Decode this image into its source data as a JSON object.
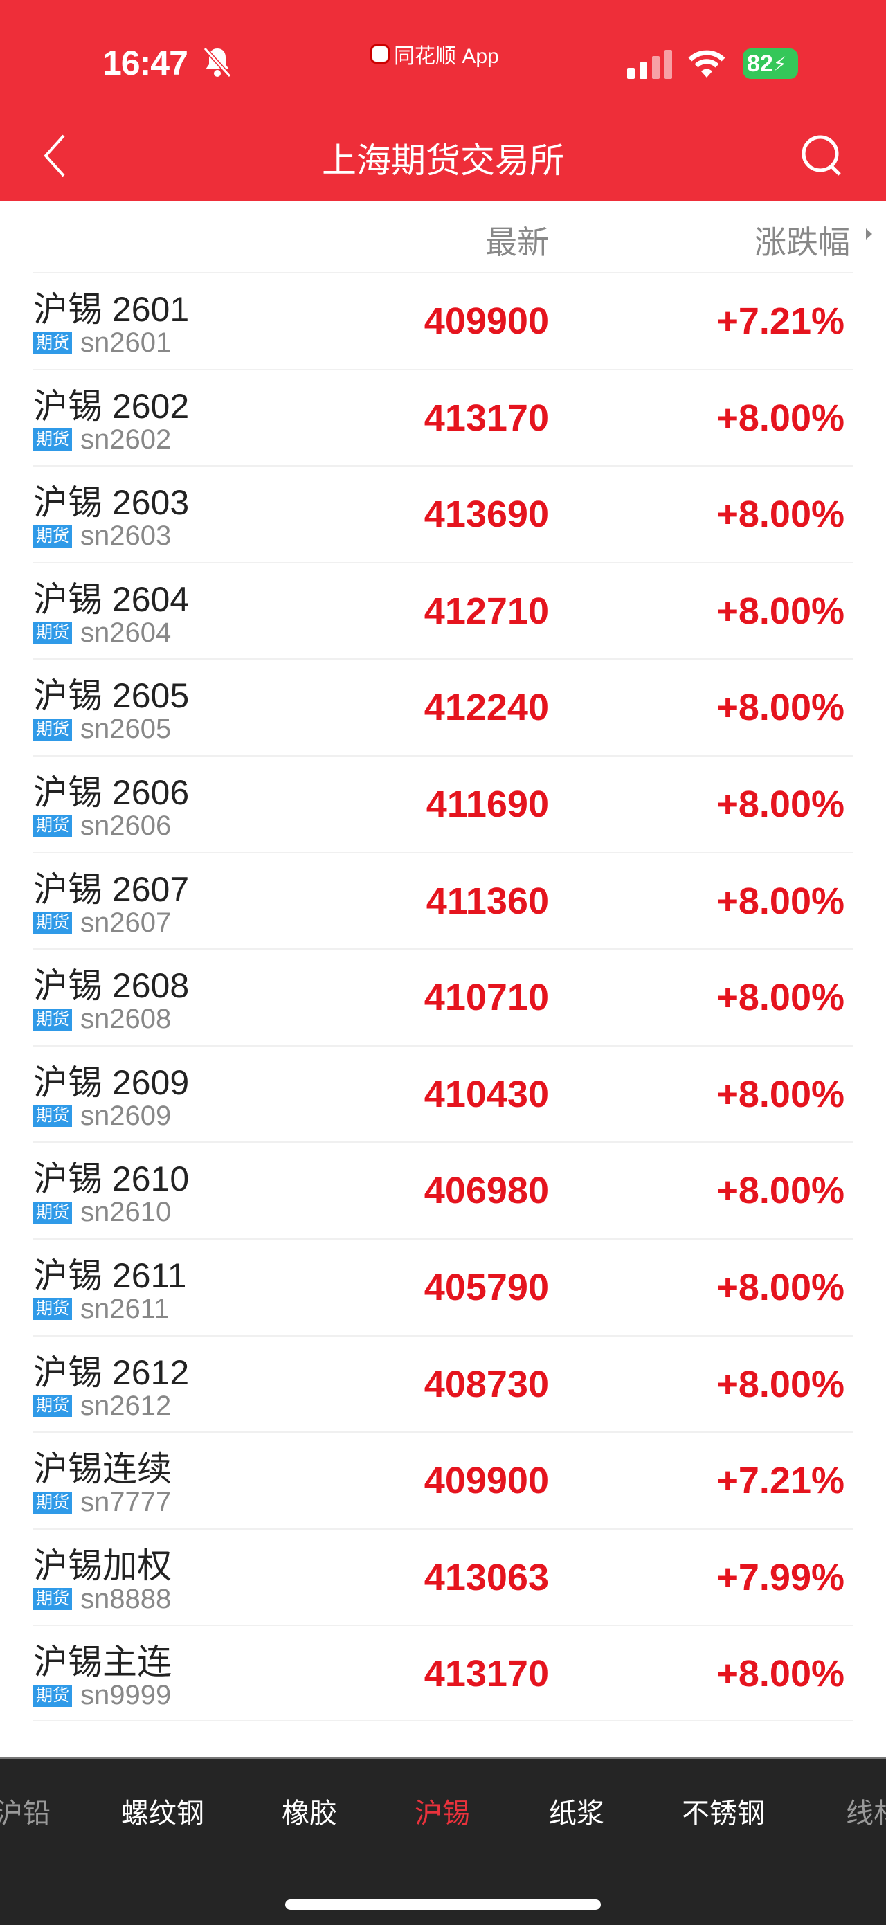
{
  "status_bar": {
    "time": "16:47",
    "app_name": "同花顺 App",
    "battery": "82",
    "icons": [
      "bell-slash-icon",
      "signal-icon",
      "wifi-icon",
      "battery-charging-icon"
    ]
  },
  "header": {
    "title": "上海期货交易所",
    "back_icon": "chevron-left-icon",
    "search_icon": "search-icon"
  },
  "columns": {
    "latest": "最新",
    "change": "涨跌幅"
  },
  "colors": {
    "header_bg": "#ee2e39",
    "up": "#e5141e",
    "badge": "#2f9ae8",
    "tabbar_bg": "#252525"
  },
  "rows": [
    {
      "name": "沪锡 2601",
      "badge": "期货",
      "code": "sn2601",
      "price": "409900",
      "change": "+7.21%"
    },
    {
      "name": "沪锡 2602",
      "badge": "期货",
      "code": "sn2602",
      "price": "413170",
      "change": "+8.00%"
    },
    {
      "name": "沪锡 2603",
      "badge": "期货",
      "code": "sn2603",
      "price": "413690",
      "change": "+8.00%"
    },
    {
      "name": "沪锡 2604",
      "badge": "期货",
      "code": "sn2604",
      "price": "412710",
      "change": "+8.00%"
    },
    {
      "name": "沪锡 2605",
      "badge": "期货",
      "code": "sn2605",
      "price": "412240",
      "change": "+8.00%"
    },
    {
      "name": "沪锡 2606",
      "badge": "期货",
      "code": "sn2606",
      "price": "411690",
      "change": "+8.00%"
    },
    {
      "name": "沪锡 2607",
      "badge": "期货",
      "code": "sn2607",
      "price": "411360",
      "change": "+8.00%"
    },
    {
      "name": "沪锡 2608",
      "badge": "期货",
      "code": "sn2608",
      "price": "410710",
      "change": "+8.00%"
    },
    {
      "name": "沪锡 2609",
      "badge": "期货",
      "code": "sn2609",
      "price": "410430",
      "change": "+8.00%"
    },
    {
      "name": "沪锡 2610",
      "badge": "期货",
      "code": "sn2610",
      "price": "406980",
      "change": "+8.00%"
    },
    {
      "name": "沪锡 2611",
      "badge": "期货",
      "code": "sn2611",
      "price": "405790",
      "change": "+8.00%"
    },
    {
      "name": "沪锡 2612",
      "badge": "期货",
      "code": "sn2612",
      "price": "408730",
      "change": "+8.00%"
    },
    {
      "name": "沪锡连续",
      "badge": "期货",
      "code": "sn7777",
      "price": "409900",
      "change": "+7.21%"
    },
    {
      "name": "沪锡加权",
      "badge": "期货",
      "code": "sn8888",
      "price": "413063",
      "change": "+7.99%"
    },
    {
      "name": "沪锡主连",
      "badge": "期货",
      "code": "sn9999",
      "price": "413170",
      "change": "+8.00%"
    }
  ],
  "tabs": [
    {
      "label": "沪铅",
      "state": "partial"
    },
    {
      "label": "螺纹钢",
      "state": "normal"
    },
    {
      "label": "橡胶",
      "state": "normal"
    },
    {
      "label": "沪锡",
      "state": "active"
    },
    {
      "label": "纸浆",
      "state": "normal"
    },
    {
      "label": "不锈钢",
      "state": "normal"
    },
    {
      "label": "线材",
      "state": "partial"
    }
  ]
}
